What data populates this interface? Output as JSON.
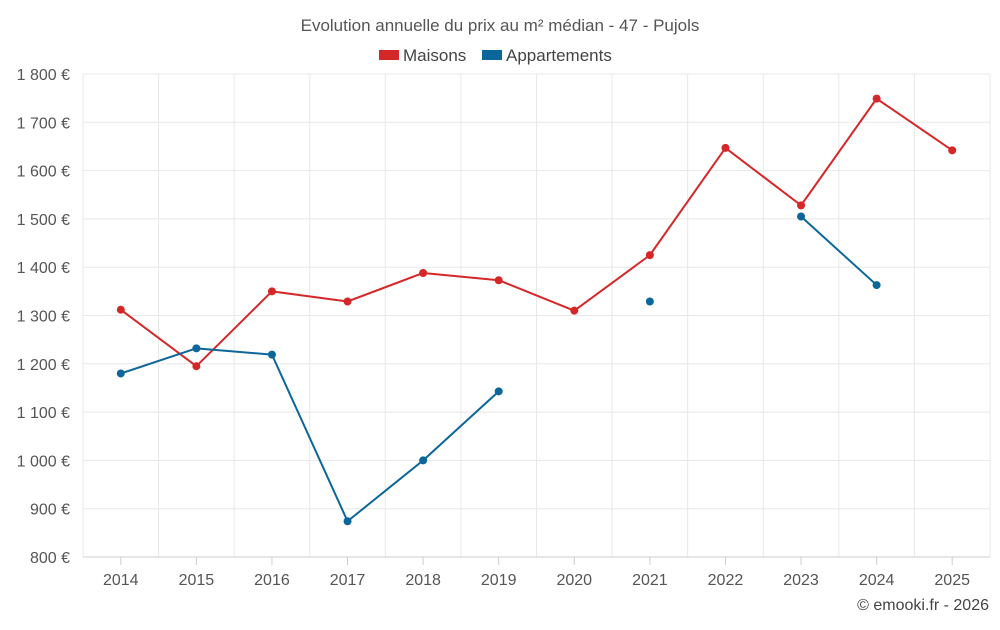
{
  "chart_data": {
    "type": "line",
    "title": "Evolution annuelle du prix au m² médian - 47 - Pujols",
    "categories": [
      "2014",
      "2015",
      "2016",
      "2017",
      "2018",
      "2019",
      "2020",
      "2021",
      "2022",
      "2023",
      "2024",
      "2025"
    ],
    "ylim": [
      800,
      1800
    ],
    "yticks": [
      800,
      900,
      1000,
      1100,
      1200,
      1300,
      1400,
      1500,
      1600,
      1700,
      1800
    ],
    "ytick_labels": [
      "800 €",
      "900 €",
      "1 000 €",
      "1 100 €",
      "1 200 €",
      "1 300 €",
      "1 400 €",
      "1 500 €",
      "1 600 €",
      "1 700 €",
      "1 800 €"
    ],
    "grid": true,
    "legend_position": "top-center",
    "series": [
      {
        "name": "Maisons",
        "color": "#d62728",
        "values": [
          1312,
          1195,
          1350,
          1329,
          1388,
          1373,
          1310,
          1425,
          1647,
          1528,
          1749,
          1642
        ]
      },
      {
        "name": "Appartements",
        "color": "#0b6699",
        "values": [
          1180,
          1232,
          1219,
          874,
          1000,
          1143,
          null,
          1329,
          null,
          1505,
          1363,
          null
        ]
      }
    ]
  },
  "credit": "© emooki.fr - 2026"
}
